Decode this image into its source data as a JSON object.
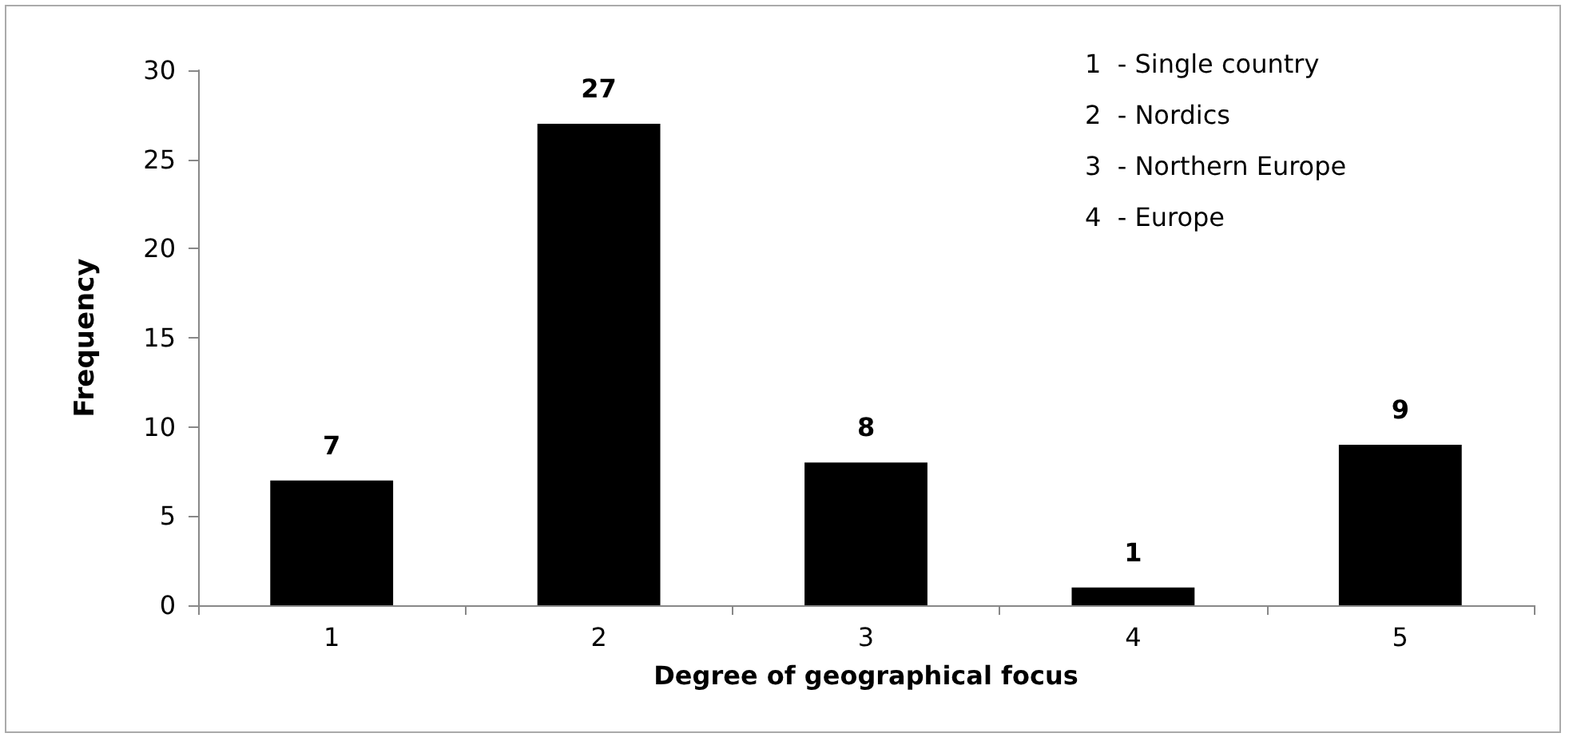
{
  "chart_data": {
    "type": "bar",
    "xlabel": "Degree of geographical focus",
    "ylabel": "Frequency",
    "categories": [
      "1",
      "2",
      "3",
      "4",
      "5"
    ],
    "values": [
      7,
      27,
      8,
      1,
      9
    ],
    "color": "#000000",
    "ylim": [
      0,
      30
    ],
    "yticks": [
      0,
      5,
      10,
      15,
      20,
      25,
      30
    ],
    "grid": false,
    "data_labels": true,
    "annotations": [
      "1  - Single country",
      "2  - Nordics",
      "3  - Northern Europe",
      "4  - Europe"
    ]
  }
}
